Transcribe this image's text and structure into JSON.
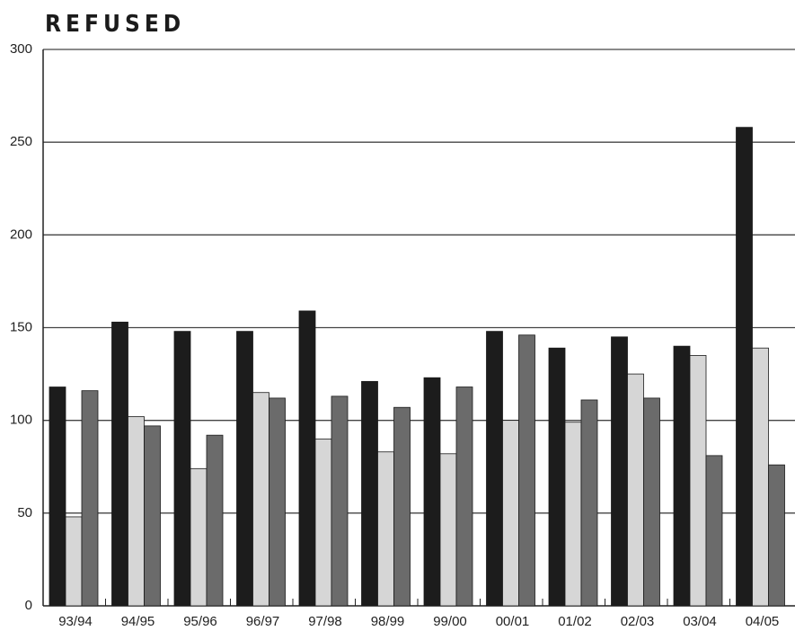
{
  "chart_data": {
    "type": "bar",
    "title": "REFUSED",
    "xlabel": "",
    "ylabel": "",
    "ylim": [
      0,
      300
    ],
    "yticks": [
      0,
      50,
      100,
      150,
      200,
      250,
      300
    ],
    "grid": true,
    "categories": [
      "93/94",
      "94/95",
      "95/96",
      "96/97",
      "97/98",
      "98/99",
      "99/00",
      "00/01",
      "01/02",
      "02/03",
      "03/04",
      "04/05"
    ],
    "series": [
      {
        "color": "#1c1c1c",
        "values": [
          118,
          153,
          148,
          148,
          159,
          121,
          123,
          148,
          139,
          145,
          140,
          258
        ]
      },
      {
        "color": "#d6d6d6",
        "values": [
          48,
          102,
          74,
          115,
          90,
          83,
          82,
          100,
          99,
          125,
          135,
          139
        ]
      },
      {
        "color": "#6b6b6b",
        "values": [
          116,
          97,
          92,
          112,
          113,
          107,
          118,
          146,
          111,
          112,
          81,
          76
        ]
      }
    ]
  }
}
